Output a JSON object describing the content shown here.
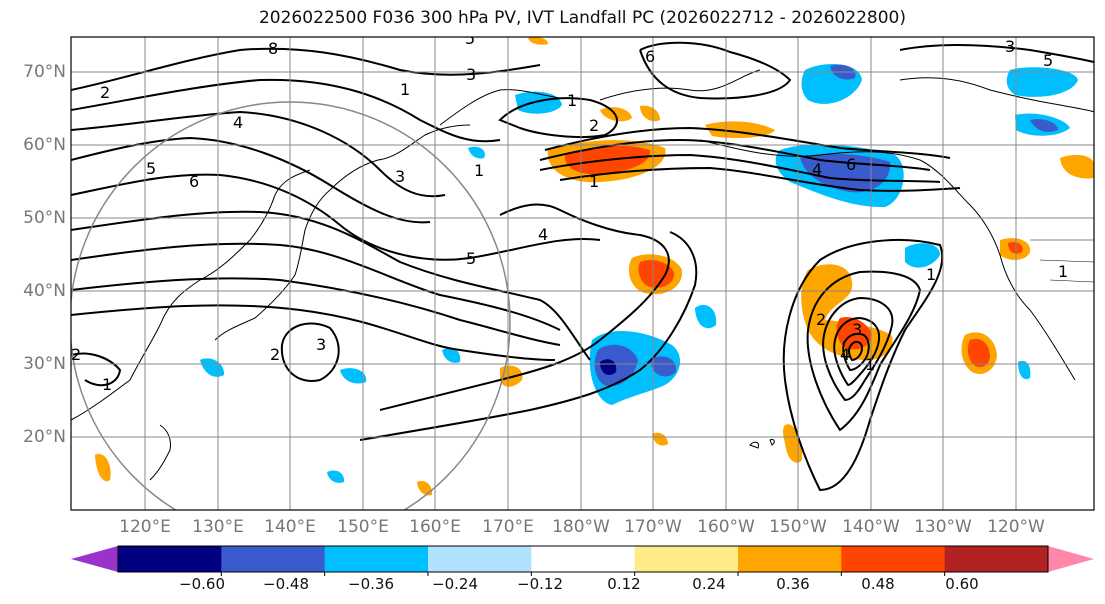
{
  "title": "2026022500 F036 300 hPa PV, IVT Landfall PC (2026022712 - 2026022800)",
  "lat_labels": [
    "70°N",
    "60°N",
    "50°N",
    "40°N",
    "30°N",
    "20°N"
  ],
  "lon_labels": [
    "120°E",
    "130°E",
    "140°E",
    "150°E",
    "160°E",
    "170°E",
    "180°W",
    "170°W",
    "160°W",
    "150°W",
    "140°W",
    "130°W",
    "120°W"
  ],
  "colorbar": {
    "ticks": [
      "−0.60",
      "−0.48",
      "−0.36",
      "−0.24",
      "−0.12",
      "0.12",
      "0.24",
      "0.36",
      "0.48",
      "0.60"
    ],
    "colors": [
      "#9933cc",
      "#000080",
      "#3a5bcc",
      "#00bfff",
      "#b0e2ff",
      "#ffffff",
      "#ffeb8a",
      "#ffa500",
      "#ff4500",
      "#b22222",
      "#ff88aa"
    ]
  },
  "contour_labels": [
    "8",
    "5",
    "6",
    "2",
    "1",
    "3",
    "4",
    "5",
    "6",
    "5",
    "1",
    "3",
    "1",
    "4",
    "5",
    "3",
    "2",
    "1",
    "6",
    "4",
    "2",
    "1",
    "3",
    "2",
    "1",
    "1",
    "3",
    "1",
    "4",
    "2"
  ]
}
